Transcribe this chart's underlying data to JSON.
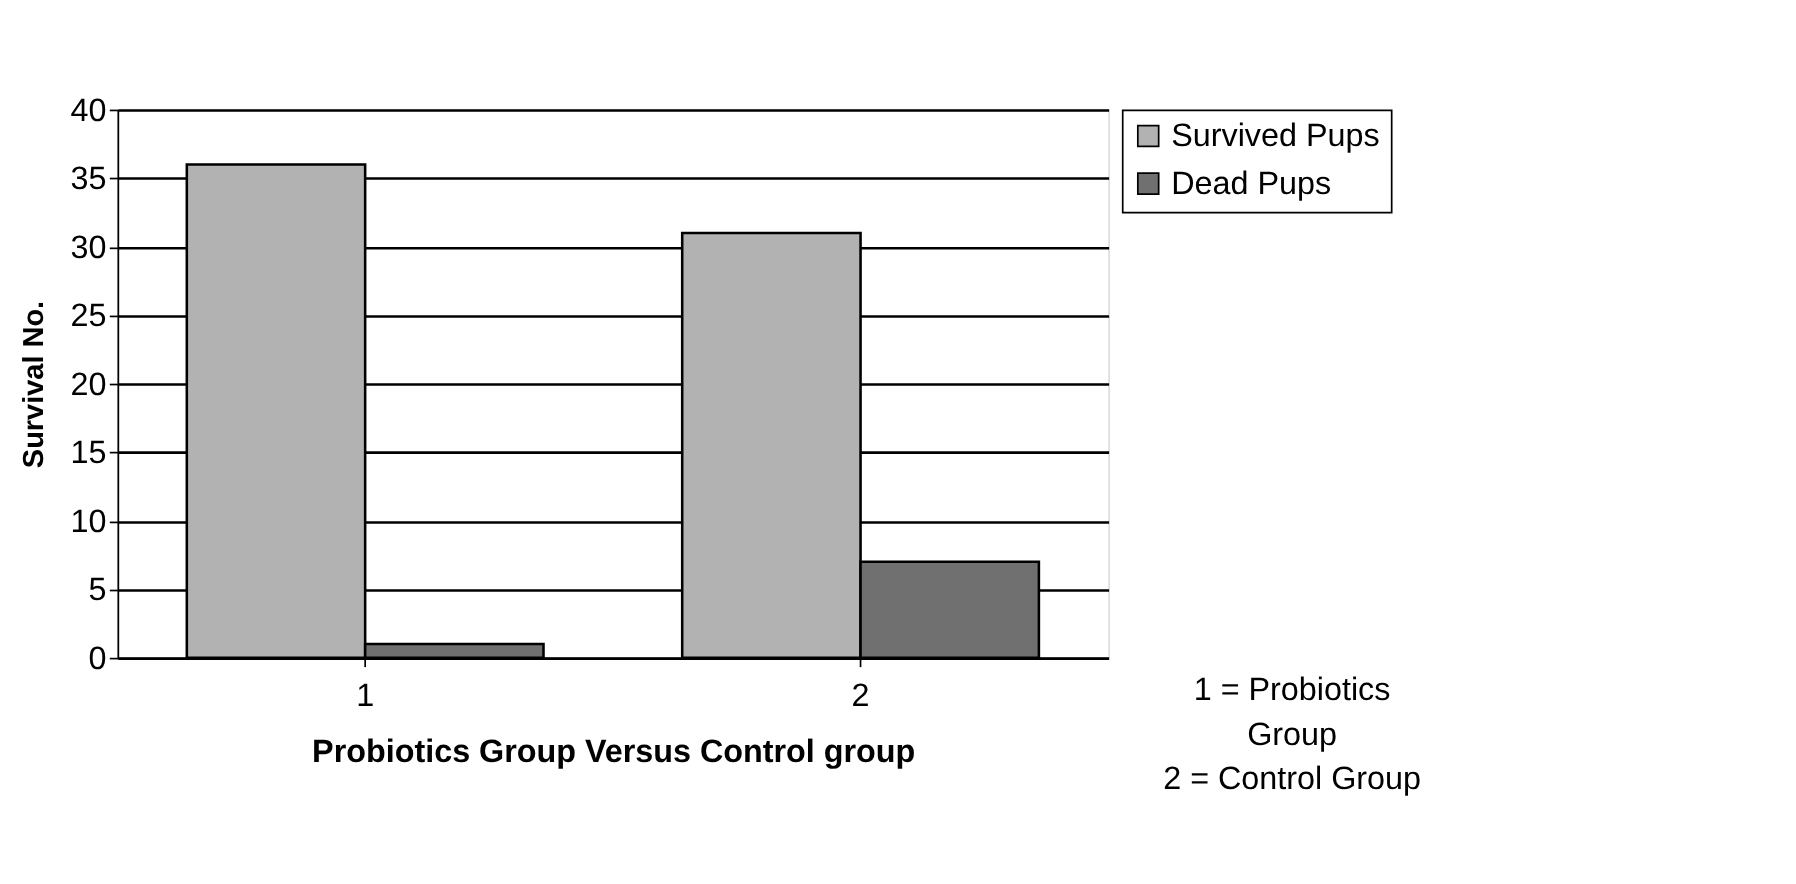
{
  "chart_data": {
    "type": "bar",
    "categories": [
      "1",
      "2"
    ],
    "series": [
      {
        "name": "Survived Pups",
        "color": "#b2b2b2",
        "values": [
          36,
          31
        ]
      },
      {
        "name": "Dead Pups",
        "color": "#707070",
        "values": [
          1,
          7
        ]
      }
    ],
    "xlabel": "Probiotics Group Versus Control group",
    "ylabel": "Survival No.",
    "ylim": [
      0,
      40
    ],
    "yticks": [
      0,
      5,
      10,
      15,
      20,
      25,
      30,
      35,
      40
    ],
    "grid": "y",
    "legend": "top right",
    "annotations": [
      "1 = Probiotics Group",
      "2 = Control Group"
    ]
  }
}
